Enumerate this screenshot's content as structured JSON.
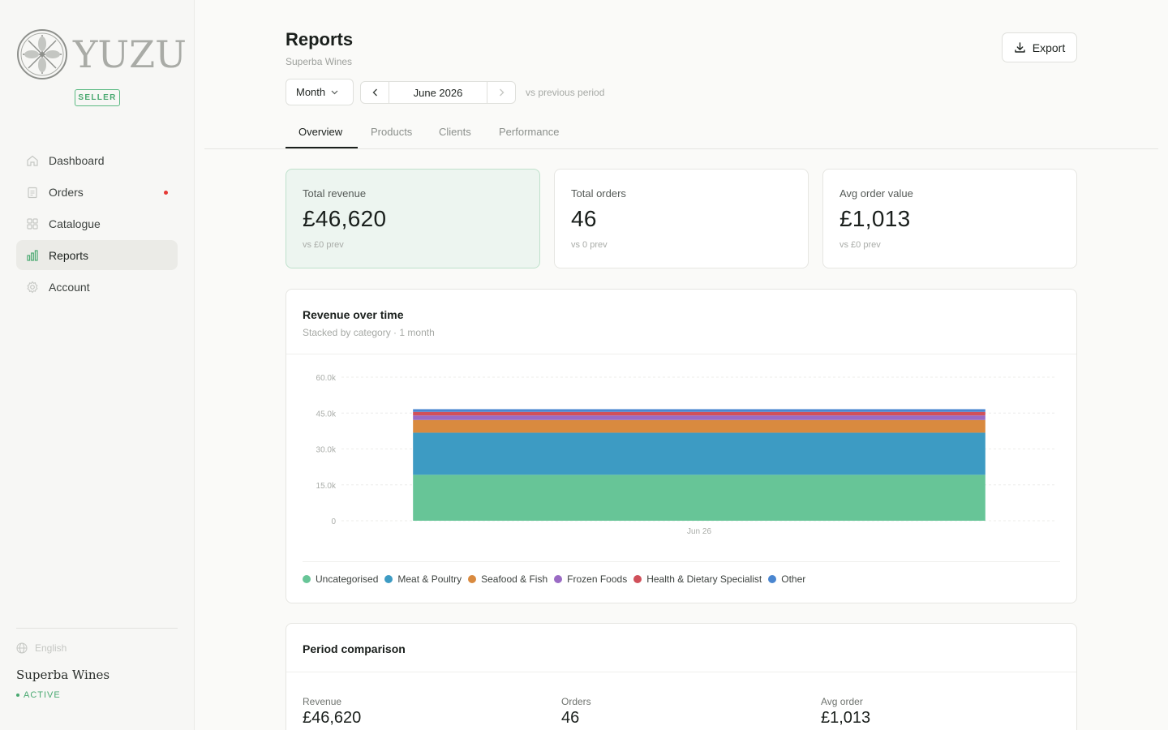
{
  "brand": {
    "name": "YUZU",
    "badge": "SELLER"
  },
  "sidebar": {
    "items": [
      {
        "label": "Dashboard",
        "icon": "home-icon",
        "active": false,
        "notify": false
      },
      {
        "label": "Orders",
        "icon": "orders-icon",
        "active": false,
        "notify": true
      },
      {
        "label": "Catalogue",
        "icon": "grid-icon",
        "active": false,
        "notify": false
      },
      {
        "label": "Reports",
        "icon": "bar-chart-icon",
        "active": true,
        "notify": false
      },
      {
        "label": "Account",
        "icon": "gear-icon",
        "active": false,
        "notify": false
      }
    ],
    "language": "English",
    "company": "Superba Wines",
    "status": "ACTIVE"
  },
  "header": {
    "title": "Reports",
    "subtitle": "Superba Wines",
    "export_label": "Export",
    "period": "Month",
    "date": "June 2026",
    "compare_label": "vs previous period"
  },
  "tabs": [
    "Overview",
    "Products",
    "Clients",
    "Performance"
  ],
  "active_tab": "Overview",
  "kpis": [
    {
      "label": "Total revenue",
      "value": "£46,620",
      "sub": "vs £0 prev"
    },
    {
      "label": "Total orders",
      "value": "46",
      "sub": "vs 0 prev"
    },
    {
      "label": "Avg order value",
      "value": "£1,013",
      "sub": "vs £0 prev"
    }
  ],
  "revenue_card": {
    "title": "Revenue over time",
    "subtitle": "Stacked by category · 1 month"
  },
  "chart_data": {
    "type": "bar",
    "stacked": true,
    "categories": [
      "Jun 26"
    ],
    "y_ticks": [
      "0",
      "15.0k",
      "30.0k",
      "45.0k",
      "60.0k"
    ],
    "ylim": [
      0,
      60000
    ],
    "grid": true,
    "legend_position": "bottom-left",
    "series": [
      {
        "name": "Uncategorised",
        "color": "#67c597",
        "values": [
          19200
        ]
      },
      {
        "name": "Meat & Poultry",
        "color": "#3d9bc3",
        "values": [
          17600
        ]
      },
      {
        "name": "Seafood & Fish",
        "color": "#d98a3f",
        "values": [
          5300
        ]
      },
      {
        "name": "Frozen Foods",
        "color": "#9a6bc4",
        "values": [
          1900
        ]
      },
      {
        "name": "Health & Dietary Specialist",
        "color": "#d0505a",
        "values": [
          1500
        ]
      },
      {
        "name": "Other",
        "color": "#4a86d0",
        "values": [
          1120
        ]
      }
    ]
  },
  "comparison": {
    "title": "Period comparison",
    "items": [
      {
        "label": "Revenue",
        "value": "£46,620"
      },
      {
        "label": "Orders",
        "value": "46"
      },
      {
        "label": "Avg order",
        "value": "£1,013"
      }
    ]
  }
}
